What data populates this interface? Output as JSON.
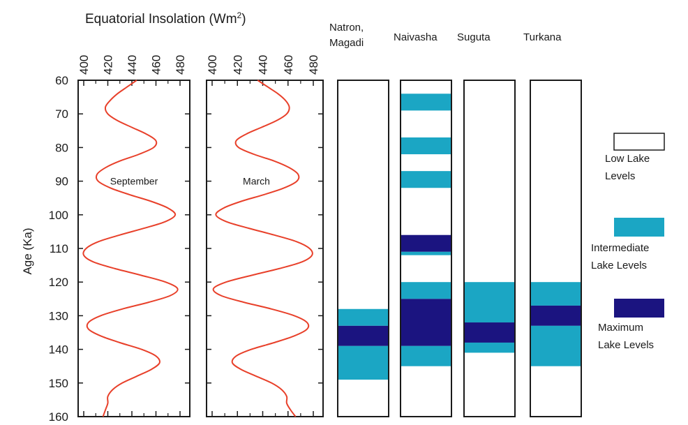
{
  "chart_data": {
    "type": "line",
    "title": "Equatorial Insolation (Wm",
    "title_superscript": "2",
    "title_close": ")",
    "ylabel": "Age (Ka)",
    "ylim": [
      60,
      160
    ],
    "y_reversed": true,
    "yticks": [
      60,
      70,
      80,
      90,
      100,
      110,
      120,
      130,
      140,
      150,
      160
    ],
    "xlim": [
      400,
      480
    ],
    "xticks": [
      400,
      420,
      440,
      460,
      480
    ],
    "line_color": "#e8402a",
    "series": [
      {
        "name": "September",
        "age": [
          60,
          62,
          64,
          66,
          68,
          70,
          72,
          74,
          76,
          78,
          80,
          82,
          84,
          86,
          88,
          90,
          92,
          94,
          96,
          98,
          100,
          102,
          104,
          106,
          108,
          110,
          112,
          114,
          116,
          118,
          120,
          122,
          124,
          126,
          128,
          130,
          132,
          134,
          136,
          138,
          140,
          142,
          144,
          146,
          148,
          150,
          152,
          154,
          156,
          158,
          160
        ],
        "insolation": [
          444,
          436,
          428,
          422,
          418,
          420,
          428,
          440,
          452,
          460,
          458,
          446,
          430,
          418,
          411,
          412,
          422,
          438,
          456,
          470,
          476,
          468,
          450,
          430,
          412,
          402,
          400,
          408,
          426,
          448,
          468,
          478,
          472,
          454,
          432,
          414,
          404,
          404,
          414,
          430,
          448,
          460,
          463,
          456,
          444,
          432,
          424,
          420,
          420,
          418,
          416
        ]
      },
      {
        "name": "March",
        "age": [
          60,
          62,
          64,
          66,
          68,
          70,
          72,
          74,
          76,
          78,
          80,
          82,
          84,
          86,
          88,
          90,
          92,
          94,
          96,
          98,
          100,
          102,
          104,
          106,
          108,
          110,
          112,
          114,
          116,
          118,
          120,
          122,
          124,
          126,
          128,
          130,
          132,
          134,
          136,
          138,
          140,
          142,
          144,
          146,
          148,
          150,
          152,
          154,
          156,
          158,
          160
        ],
        "insolation": [
          436,
          444,
          452,
          458,
          461,
          459,
          451,
          439,
          427,
          419,
          421,
          433,
          449,
          461,
          468,
          467,
          457,
          441,
          423,
          409,
          403,
          411,
          429,
          449,
          467,
          477,
          479,
          471,
          453,
          431,
          411,
          401,
          407,
          425,
          447,
          465,
          475,
          475,
          465,
          449,
          431,
          419,
          416,
          423,
          435,
          447,
          455,
          459,
          459,
          462,
          466
        ]
      }
    ],
    "lake_columns": [
      {
        "name": "Natron,\nMagadi",
        "intervals": [
          {
            "from": 128,
            "to": 133,
            "level": "intermediate"
          },
          {
            "from": 133,
            "to": 139,
            "level": "maximum"
          },
          {
            "from": 139,
            "to": 149,
            "level": "intermediate"
          }
        ]
      },
      {
        "name": "Naivasha",
        "intervals": [
          {
            "from": 64,
            "to": 69,
            "level": "intermediate"
          },
          {
            "from": 77,
            "to": 82,
            "level": "intermediate"
          },
          {
            "from": 87,
            "to": 92,
            "level": "intermediate"
          },
          {
            "from": 106,
            "to": 111,
            "level": "maximum"
          },
          {
            "from": 111,
            "to": 112,
            "level": "intermediate"
          },
          {
            "from": 120,
            "to": 125,
            "level": "intermediate"
          },
          {
            "from": 125,
            "to": 139,
            "level": "maximum"
          },
          {
            "from": 139,
            "to": 145,
            "level": "intermediate"
          }
        ]
      },
      {
        "name": "Suguta",
        "intervals": [
          {
            "from": 120,
            "to": 132,
            "level": "intermediate"
          },
          {
            "from": 132,
            "to": 138,
            "level": "maximum"
          },
          {
            "from": 138,
            "to": 141,
            "level": "intermediate"
          }
        ]
      },
      {
        "name": "Turkana",
        "intervals": [
          {
            "from": 120,
            "to": 127,
            "level": "intermediate"
          },
          {
            "from": 127,
            "to": 133,
            "level": "maximum"
          },
          {
            "from": 133,
            "to": 145,
            "level": "intermediate"
          }
        ]
      }
    ],
    "legend": [
      {
        "level": "low",
        "label": "Low Lake\nLevels",
        "color": "#ffffff"
      },
      {
        "level": "intermediate",
        "label": "Intermediate\nLake Levels",
        "color": "#1ba6c4"
      },
      {
        "level": "maximum",
        "label": "Maximum\nLake Levels",
        "color": "#1b1480"
      }
    ]
  }
}
